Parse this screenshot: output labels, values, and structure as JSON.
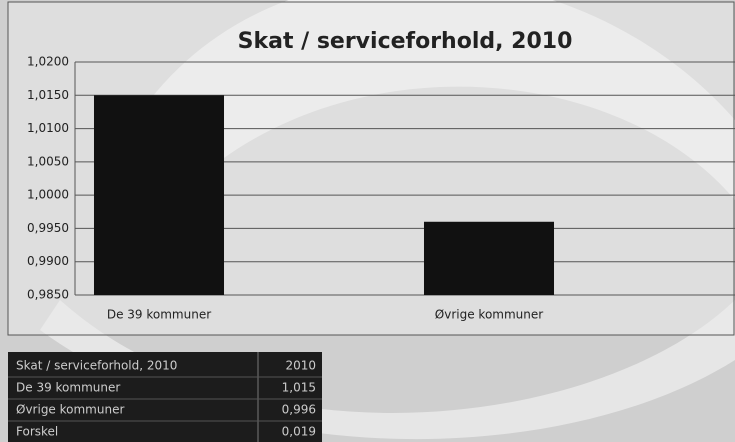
{
  "chart_data": {
    "type": "bar",
    "title": "Skat / serviceforhold, 2010",
    "categories": [
      "De 39 kommuner",
      "Øvrige kommuner"
    ],
    "values": [
      1.015,
      0.996
    ],
    "color": "#111111",
    "ylim": [
      0.985,
      1.02
    ],
    "yticks": [
      {
        "value": 0.985,
        "label": "0,9850"
      },
      {
        "value": 0.99,
        "label": "0,9900"
      },
      {
        "value": 0.995,
        "label": "0,9950"
      },
      {
        "value": 1.0,
        "label": "1,0000"
      },
      {
        "value": 1.005,
        "label": "1,0050"
      },
      {
        "value": 1.01,
        "label": "1,0100"
      },
      {
        "value": 1.015,
        "label": "1,0150"
      },
      {
        "value": 1.02,
        "label": "1,0200"
      }
    ],
    "grid": true
  },
  "table": {
    "header": [
      "Skat / serviceforhold, 2010",
      "2010"
    ],
    "rows": [
      [
        "De 39 kommuner",
        "1,015"
      ],
      [
        "Øvrige kommuner",
        "0,996"
      ],
      [
        "Forskel",
        "0,019"
      ]
    ]
  }
}
